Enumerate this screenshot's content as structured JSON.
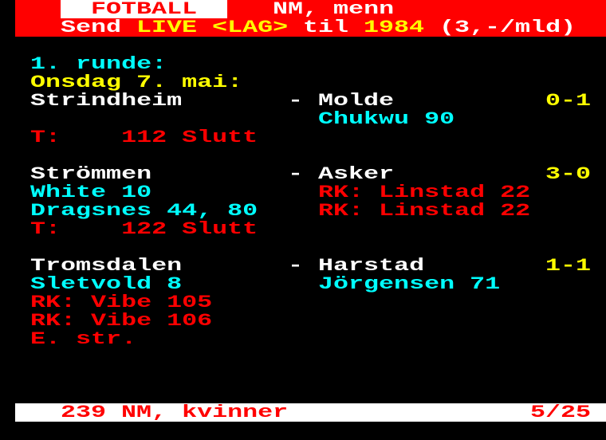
{
  "colors": {
    "red": "#ff0000",
    "yellow": "#ffff00",
    "cyan": "#00ffff",
    "white": "#ffffff",
    "background": "#000000"
  },
  "header": {
    "section": "FOTBALL",
    "title": "NM, menn",
    "promo": {
      "send": "Send",
      "keyword": "LIVE <LAG>",
      "til": "til",
      "number": "1984",
      "price": "(3,-/mld)"
    }
  },
  "round": "1. runde:",
  "date": "Onsdag 7. mai:",
  "matches": [
    {
      "home": "Strindheim",
      "sep": "-",
      "away": "Molde",
      "score": "0-1",
      "away_events": [
        "Chukwu 90"
      ],
      "home_events": [],
      "notes": [
        "T:    112 Slutt"
      ]
    },
    {
      "home": "Strömmen",
      "sep": "-",
      "away": "Asker",
      "score": "3-0",
      "home_events": [
        "White 10",
        "Dragsnes 44, 80"
      ],
      "away_events": [
        "RK: Linstad 22",
        "RK: Linstad 22"
      ],
      "notes": [
        "T:    122 Slutt"
      ]
    },
    {
      "home": "Tromsdalen",
      "sep": "-",
      "away": "Harstad",
      "score": "1-1",
      "home_events": [
        "Sletvold 8"
      ],
      "away_events": [
        "Jörgensen 71"
      ],
      "notes": [
        "RK: Vibe 105",
        "RK: Vibe 106",
        "E. str."
      ]
    }
  ],
  "footer": {
    "link": "239 NM, kvinner",
    "page": "5/25"
  }
}
